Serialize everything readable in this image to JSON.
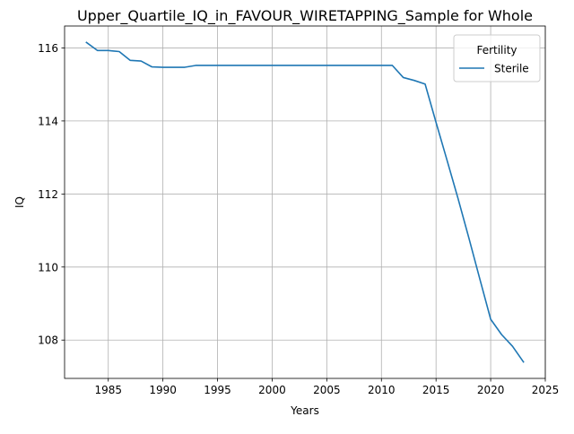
{
  "chart_data": {
    "type": "line",
    "title": "Upper_Quartile_IQ_in_FAVOUR_WIRETAPPING_Sample for Whole",
    "xlabel": "Years",
    "ylabel": "IQ",
    "xlim": [
      1981.0,
      2025.0
    ],
    "ylim": [
      106.95,
      116.6
    ],
    "xticks": [
      1985,
      1990,
      1995,
      2000,
      2005,
      2010,
      2015,
      2020,
      2025
    ],
    "yticks": [
      108,
      110,
      112,
      114,
      116
    ],
    "grid": true,
    "legend": {
      "title": "Fertility",
      "location": "upper right"
    },
    "series": [
      {
        "name": "Sterile",
        "color": "#1f77b4",
        "x": [
          1983,
          1984,
          1985,
          1986,
          1987,
          1988,
          1989,
          1990,
          1991,
          1992,
          1993,
          1994,
          1995,
          1996,
          1997,
          1998,
          1999,
          2000,
          2001,
          2002,
          2003,
          2004,
          2005,
          2006,
          2007,
          2008,
          2009,
          2010,
          2011,
          2012,
          2013,
          2014,
          2015,
          2016,
          2017,
          2018,
          2019,
          2020,
          2021,
          2022,
          2023
        ],
        "y": [
          116.15,
          115.93,
          115.93,
          115.9,
          115.66,
          115.64,
          115.48,
          115.47,
          115.47,
          115.47,
          115.52,
          115.52,
          115.52,
          115.52,
          115.52,
          115.52,
          115.52,
          115.52,
          115.52,
          115.52,
          115.52,
          115.52,
          115.52,
          115.52,
          115.52,
          115.52,
          115.52,
          115.52,
          115.52,
          115.19,
          115.11,
          115.01,
          113.96,
          112.93,
          111.89,
          110.8,
          109.68,
          108.57,
          108.15,
          107.83,
          107.4
        ]
      }
    ]
  }
}
